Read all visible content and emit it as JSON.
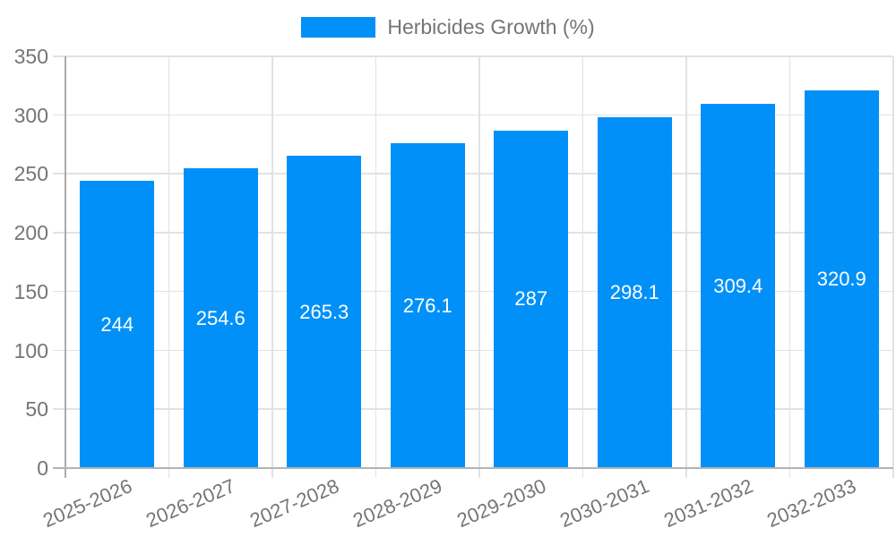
{
  "legend": {
    "label": "Herbicides Growth (%)"
  },
  "chart_data": {
    "type": "bar",
    "title": "Herbicides Growth (%)",
    "xlabel": "",
    "ylabel": "",
    "categories": [
      "2025-2026",
      "2026-2027",
      "2027-2028",
      "2028-2029",
      "2029-2030",
      "2030-2031",
      "2031-2032",
      "2032-2033"
    ],
    "series": [
      {
        "name": "Herbicides Growth (%)",
        "values": [
          244,
          254.6,
          265.3,
          276.1,
          287,
          298.1,
          309.4,
          320.9
        ],
        "value_labels": [
          "244",
          "254.6",
          "265.3",
          "276.1",
          "287",
          "298.1",
          "309.4",
          "320.9"
        ],
        "color": "#0190f8"
      }
    ],
    "ylim": [
      0,
      350
    ],
    "ytick_step": 50,
    "ytick_labels": [
      "0",
      "50",
      "100",
      "150",
      "200",
      "250",
      "300",
      "350"
    ],
    "grid": true,
    "legend_position": "top-center",
    "bar_label_position": "inside-center"
  },
  "colors": {
    "bar": "#0190f8",
    "bar_label": "#ffffff",
    "axis_text": "#757575",
    "gridline": "#e2e2e2",
    "y_axis_line": "#ababab",
    "x_axis_line": "#b3b3b3"
  }
}
